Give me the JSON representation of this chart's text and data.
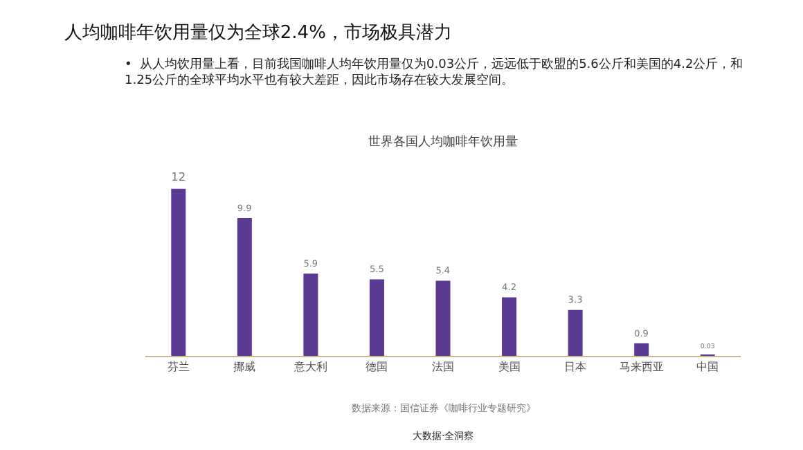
{
  "chart_data": {
    "type": "bar",
    "title": "人均咖啡年饮用量仅为全球2.4%，市场极具潜力",
    "subtitle": "•  从人均饮用量上看，目前我国咖啡人均年饮用量仅为0.03公斤，远远低于欧盟的5.6公斤和美国的4.2公斤，和\n1.25公斤的全球平均水平也有较大差距，因此市场存在较大发展空间。",
    "annotations": [
      "世界各国人均咖啡年饮用量",
      "数据来源：国信证券《咖啡行业专题研究》",
      "大数据·全洞察"
    ],
    "categories": [
      "芬兰",
      "挪威",
      "意大利",
      "德国",
      "法国",
      "美国",
      "日本",
      "马来西亚",
      "中国"
    ],
    "values": [
      12,
      9.9,
      5.9,
      5.5,
      5.4,
      4.2,
      3.3,
      0.9,
      0.03
    ],
    "color": "#5b3a93",
    "data_labels": true,
    "grid": false,
    "legend": false
  }
}
